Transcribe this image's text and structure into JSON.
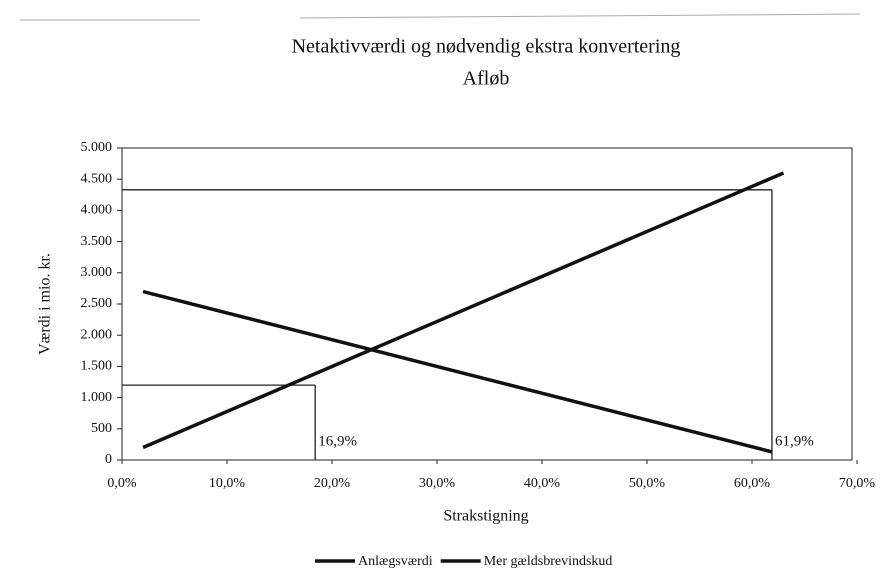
{
  "chart_data": {
    "type": "line",
    "title": "Netaktivværdi og nødvendig ekstra konvertering",
    "subtitle": "Afløb",
    "x_label": "Strakstigning",
    "y_label": "Værdi i mio. kr.",
    "xlim": [
      0,
      70
    ],
    "xticks": [
      {
        "value": 0,
        "label": "0,0%"
      },
      {
        "value": 10,
        "label": "10,0%"
      },
      {
        "value": 20,
        "label": "20,0%"
      },
      {
        "value": 30,
        "label": "30,0%"
      },
      {
        "value": 40,
        "label": "40,0%"
      },
      {
        "value": 50,
        "label": "50,0%"
      },
      {
        "value": 60,
        "label": "60,0%"
      },
      {
        "value": 70,
        "label": "70,0%"
      }
    ],
    "ylim": [
      0,
      5000
    ],
    "yticks": [
      0,
      500,
      {
        "value": 1000,
        "label": "1.000"
      },
      {
        "value": 1500,
        "label": "1.500"
      },
      {
        "value": 2000,
        "label": "2.000"
      },
      {
        "value": 2500,
        "label": "2.500"
      },
      {
        "value": 3000,
        "label": "3.000"
      },
      {
        "value": 3500,
        "label": "3.500"
      },
      {
        "value": 4000,
        "label": "4.000"
      },
      {
        "value": 4500,
        "label": "4.500"
      },
      {
        "value": 5000,
        "label": "5.000"
      }
    ],
    "series": [
      {
        "name": "Anlægsværdi",
        "color": "#111111",
        "x": [
          2,
          63
        ],
        "values": [
          200,
          4600
        ]
      },
      {
        "name": "Mer gældsbrevindskud",
        "color": "#111111",
        "x": [
          2,
          61.9
        ],
        "values": [
          2700,
          130
        ]
      }
    ],
    "annotations": [
      {
        "text": "16,9%",
        "x": 18.4,
        "y": 1200
      },
      {
        "text": "61,9%",
        "x": 61.9,
        "y": 4330
      }
    ],
    "legend": "bottom"
  }
}
